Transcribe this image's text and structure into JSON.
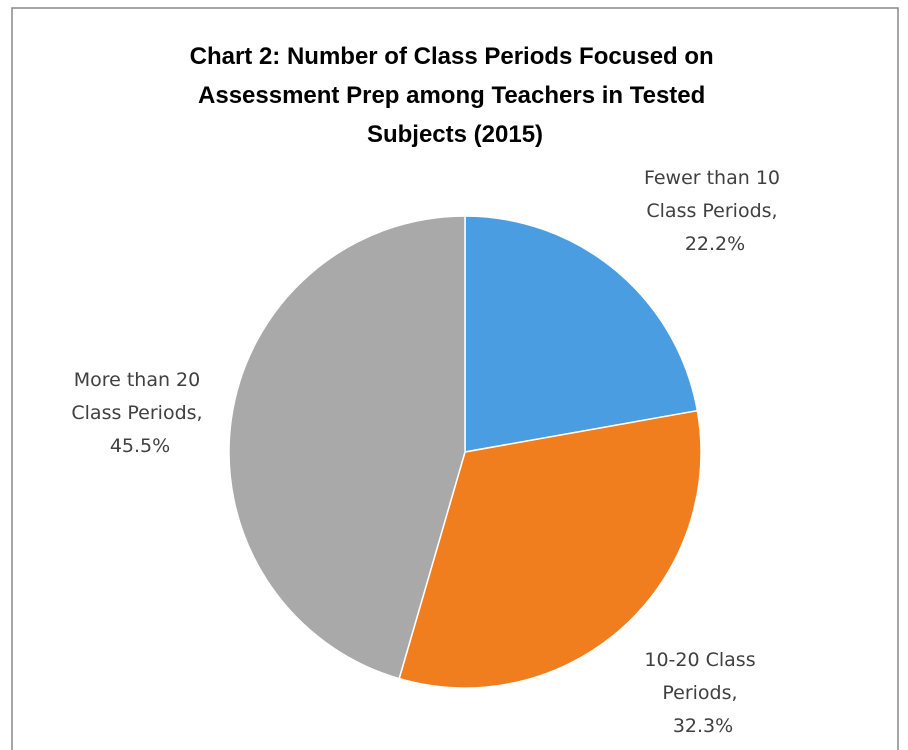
{
  "chart_data": {
    "type": "pie",
    "title": "Chart 2: Number of Class Periods Focused on Assessment Prep among Teachers in Tested Subjects (2015)",
    "values": [
      22.2,
      32.3,
      45.5
    ],
    "value_labels": [
      "Fewer than 10 Class Periods, 22.2%",
      "10-20 Class Periods, 32.3%",
      "More than 20 Class Periods, 45.5%"
    ],
    "colors": [
      "#4a9de0",
      "#f07e1f",
      "#a9a9a9"
    ]
  }
}
